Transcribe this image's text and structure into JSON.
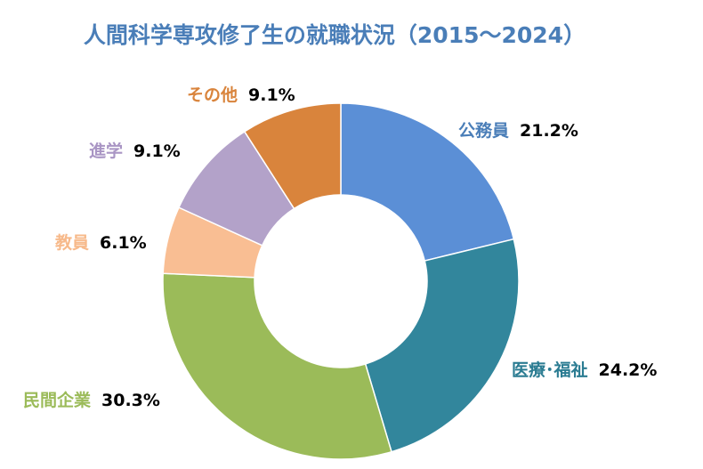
{
  "chart_data": {
    "type": "pie",
    "variant": "donut",
    "title": "人間科学専攻修了生の就職状況（2015～2024）",
    "slices": [
      {
        "label": "公務員",
        "value": 21.2,
        "display": "21.2%",
        "color": "#5b8fd6"
      },
      {
        "label": "医療･福祉",
        "value": 24.2,
        "display": "24.2%",
        "color": "#32869c"
      },
      {
        "label": "民間企業",
        "value": 30.3,
        "display": "30.3%",
        "color": "#9bbb59"
      },
      {
        "label": "教員",
        "value": 6.1,
        "display": "6.1%",
        "color": "#f9be93"
      },
      {
        "label": "進学",
        "value": 9.1,
        "display": "9.1%",
        "color": "#b3a2c9"
      },
      {
        "label": "その他",
        "value": 9.1,
        "display": "9.1%",
        "color": "#d9843c"
      }
    ],
    "label_colors": [
      "#4a7eb8",
      "#2b7c92",
      "#9bbb59",
      "#f7b98a",
      "#a995c4",
      "#d9843c"
    ],
    "start_angle": "12 o'clock",
    "direction": "clockwise",
    "legend": "none"
  }
}
